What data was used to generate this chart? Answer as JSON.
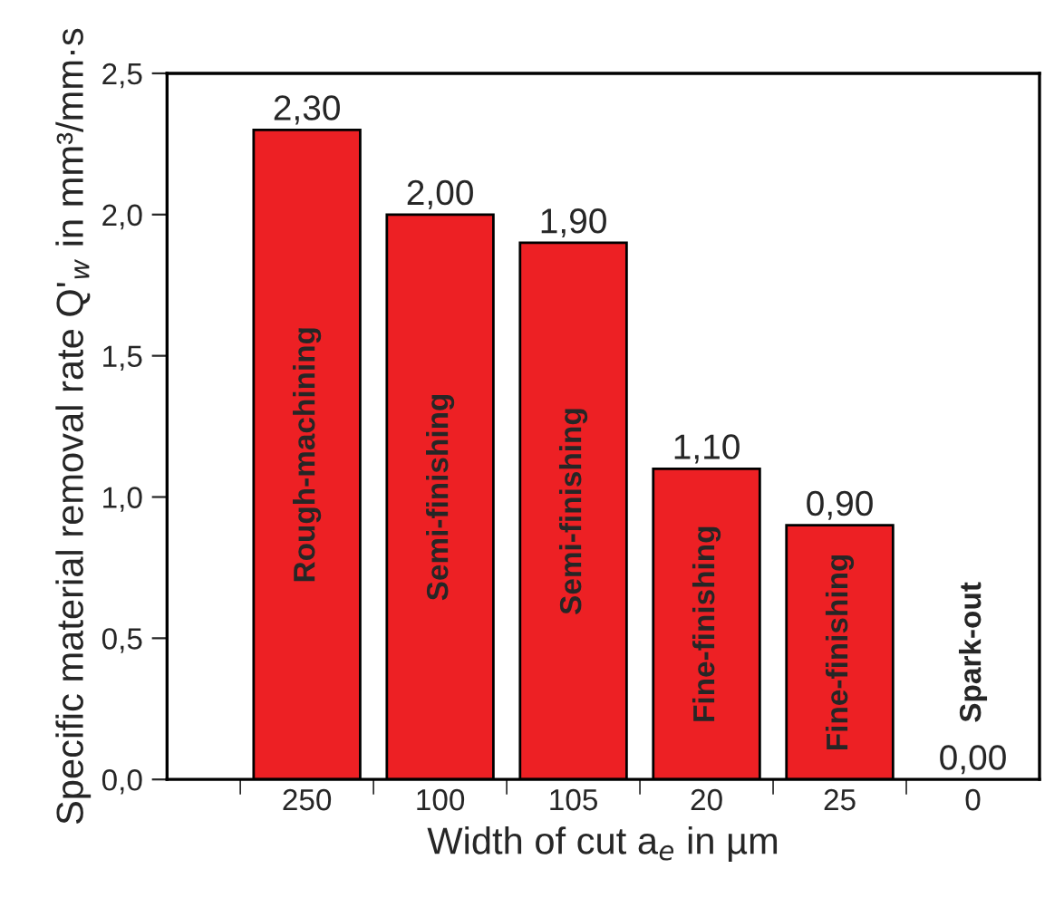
{
  "chart_data": {
    "type": "bar",
    "xlabel": "Width of cut a$_{e}$ in µm",
    "ylabel": "Specific material removal rate Q'$_{w}$ in mm³/mm·s",
    "categories": [
      "250",
      "100",
      "105",
      "20",
      "25",
      "0"
    ],
    "values": [
      2.3,
      2.0,
      1.9,
      1.1,
      0.9,
      0.0
    ],
    "value_labels": [
      "2,30",
      "2,00",
      "1,90",
      "1,10",
      "0,90",
      "0,00"
    ],
    "color": "#ed2024",
    "ylim": [
      0,
      2.5
    ],
    "yticks": [
      {
        "value": 0,
        "label": "0,0"
      },
      {
        "value": 0.5,
        "label": "0,5"
      },
      {
        "value": 1.0,
        "label": "1,0"
      },
      {
        "value": 1.5,
        "label": "1,5"
      },
      {
        "value": 2.0,
        "label": "2,0"
      },
      {
        "value": 2.5,
        "label": "2,5"
      }
    ],
    "annotations": [
      "Rough-machining",
      "Semi-finishing",
      "Semi-finishing",
      "Fine-finishing",
      "Fine-finishing",
      "Spark-out"
    ],
    "grid": false,
    "legend": false
  }
}
